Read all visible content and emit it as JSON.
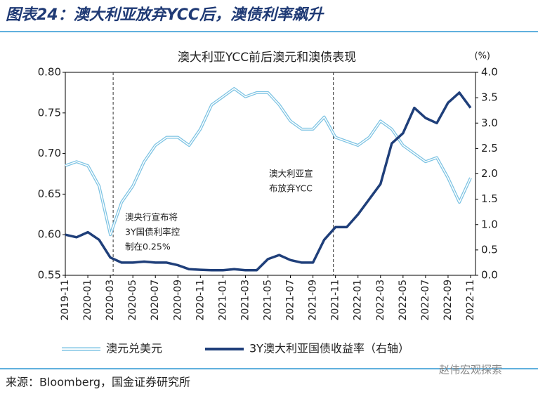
{
  "header": {
    "title": "图表24：澳大利亚放弃YCC后，澳债利率飙升"
  },
  "chart_data": {
    "type": "line",
    "title": "澳大利亚YCC前后澳元和澳债表现",
    "y2_unit": "(%)",
    "x": [
      "2019-11",
      "2019-12",
      "2020-01",
      "2020-02",
      "2020-03",
      "2020-04",
      "2020-05",
      "2020-06",
      "2020-07",
      "2020-08",
      "2020-09",
      "2020-10",
      "2020-11",
      "2020-12",
      "2021-01",
      "2021-02",
      "2021-03",
      "2021-04",
      "2021-05",
      "2021-06",
      "2021-07",
      "2021-08",
      "2021-09",
      "2021-10",
      "2021-11",
      "2021-12",
      "2022-01",
      "2022-02",
      "2022-03",
      "2022-04",
      "2022-05",
      "2022-06",
      "2022-07",
      "2022-08",
      "2022-09",
      "2022-10",
      "2022-11"
    ],
    "xticks": [
      "2019-11",
      "2020-01",
      "2020-03",
      "2020-05",
      "2020-07",
      "2020-09",
      "2020-11",
      "2021-01",
      "2021-03",
      "2021-05",
      "2021-07",
      "2021-09",
      "2021-11",
      "2022-01",
      "2022-03",
      "2022-05",
      "2022-07",
      "2022-09",
      "2022-11"
    ],
    "series": [
      {
        "name": "澳元兑美元",
        "color": "#7cc3e3",
        "axis": "y",
        "values": [
          0.685,
          0.69,
          0.685,
          0.66,
          0.6,
          0.64,
          0.66,
          0.69,
          0.71,
          0.72,
          0.72,
          0.71,
          0.73,
          0.76,
          0.77,
          0.78,
          0.77,
          0.775,
          0.775,
          0.76,
          0.74,
          0.73,
          0.73,
          0.745,
          0.72,
          0.715,
          0.71,
          0.72,
          0.74,
          0.73,
          0.71,
          0.7,
          0.69,
          0.695,
          0.67,
          0.64,
          0.67
        ]
      },
      {
        "name": "3Y澳大利亚国债收益率（右轴）",
        "color": "#1f3f7a",
        "axis": "y2",
        "values": [
          0.8,
          0.75,
          0.85,
          0.7,
          0.35,
          0.25,
          0.25,
          0.27,
          0.25,
          0.25,
          0.2,
          0.12,
          0.11,
          0.1,
          0.1,
          0.12,
          0.1,
          0.1,
          0.32,
          0.4,
          0.3,
          0.25,
          0.25,
          0.7,
          0.95,
          0.95,
          1.2,
          1.5,
          1.8,
          2.6,
          2.8,
          3.3,
          3.1,
          3.0,
          3.4,
          3.6,
          3.3
        ]
      }
    ],
    "ylim": [
      0.55,
      0.8
    ],
    "yticks": [
      0.55,
      {
        "value": 0.6,
        "label": "0.60"
      },
      0.65,
      {
        "value": 0.7,
        "label": "0.70"
      },
      0.75,
      {
        "value": 0.8,
        "label": "0.80"
      }
    ],
    "y2lim": [
      0,
      4
    ],
    "y2ticks": [
      {
        "value": 0,
        "label": "0.0"
      },
      0.5,
      {
        "value": 1,
        "label": "1.0"
      },
      1.5,
      {
        "value": 2,
        "label": "2.0"
      },
      2.5,
      {
        "value": 3,
        "label": "3.0"
      },
      3.5,
      {
        "value": 4,
        "label": "4.0"
      }
    ],
    "annotations": [
      {
        "x": "2020-03",
        "text": [
          "澳央行宣布将",
          "3Y国债利率控",
          "制在0.25%"
        ]
      },
      {
        "x": "2021-11",
        "text": [
          "澳大利亚宣",
          "布放弃YCC"
        ]
      }
    ]
  },
  "footer": {
    "source": "来源：Bloomberg，国金证券研究所",
    "watermark": "赵伟宏观探索"
  }
}
